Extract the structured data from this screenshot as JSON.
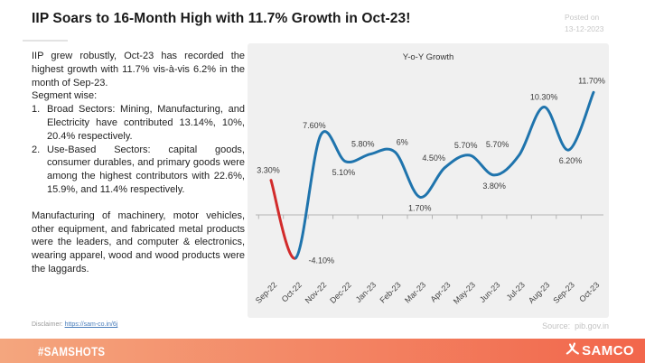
{
  "header": {
    "title": "IIP Soars to 16-Month High with 11.7% Growth in Oct-23!",
    "posted_label": "Posted on",
    "posted_date": "13-12-2023"
  },
  "body": {
    "paragraph1": "IIP grew robustly, Oct-23 has recorded the highest growth with 11.7% vis-à-vis 6.2% in the month of Sep-23.",
    "segment_wise_label": "Segment wise:",
    "list": [
      {
        "num": "1.",
        "text": "Broad Sectors: Mining, Manufacturing, and Electricity have contributed 13.14%, 10%, 20.4% respectively."
      },
      {
        "num": "2.",
        "text": "Use-Based Sectors: capital goods, consumer durables, and primary goods were among the highest contributors with 22.6%, 15.9%, and 11.4% respectively."
      }
    ],
    "paragraph2": "Manufacturing of machinery, motor vehicles, other equipment, and fabricated metal products were the leaders, and computer & electronics, wearing apparel, wood and wood products were the laggards.",
    "disclaimer_label": "Disclaimer:",
    "disclaimer_link": "https://sam-co.in/6j"
  },
  "chart_data": {
    "type": "line",
    "title": "Y-o-Y Growth",
    "categories": [
      "Sep-22",
      "Oct-22",
      "Nov-22",
      "Dec-22",
      "Jan-23",
      "Feb-23",
      "Mar-23",
      "Apr-23",
      "May-23",
      "Jun-23",
      "Jul-23",
      "Aug-23",
      "Sep-23",
      "Oct-23"
    ],
    "values": [
      3.3,
      -4.1,
      7.6,
      5.1,
      5.8,
      6,
      1.7,
      4.5,
      5.7,
      3.8,
      5.7,
      10.3,
      6.2,
      11.7
    ],
    "point_labels": [
      "3.30%",
      "-4.10%",
      "7.60%",
      "5.10%",
      "5.80%",
      "6%",
      "1.70%",
      "4.50%",
      "5.70%",
      "3.80%",
      "5.70%",
      "10.30%",
      "6.20%",
      "11.70%"
    ],
    "xlabel": "",
    "ylabel": "",
    "ylim": [
      -6.5,
      14
    ],
    "grid": false,
    "legend": "none",
    "smooth": true,
    "colors": {
      "line": "#1f74ad",
      "declining_first_segment": "#d22b2b",
      "panel_background": "#f0f0f0",
      "axis": "#b3b3b3",
      "label_text": "#3b3b3b"
    },
    "label_placement": [
      "above",
      "right",
      "above",
      "below",
      "above",
      "above",
      "below",
      "above",
      "above",
      "below",
      "above",
      "above",
      "below",
      "above"
    ],
    "label_dx": [
      -3,
      14,
      -7,
      -2,
      -8,
      8,
      0,
      -12,
      -4,
      0,
      -24,
      0,
      2,
      -2
    ],
    "label_dy": [
      -8,
      6,
      -8,
      15,
      -8,
      -8,
      15,
      -8,
      -8,
      15,
      -9,
      -8,
      15,
      -10
    ]
  },
  "source": {
    "label": "Source:",
    "value": "pib.gov.in"
  },
  "footer": {
    "hashtag": "#SAMSHOTS",
    "brand": "SAMCO",
    "gradient_left": "#f4a67e",
    "gradient_right": "#f2664b"
  }
}
